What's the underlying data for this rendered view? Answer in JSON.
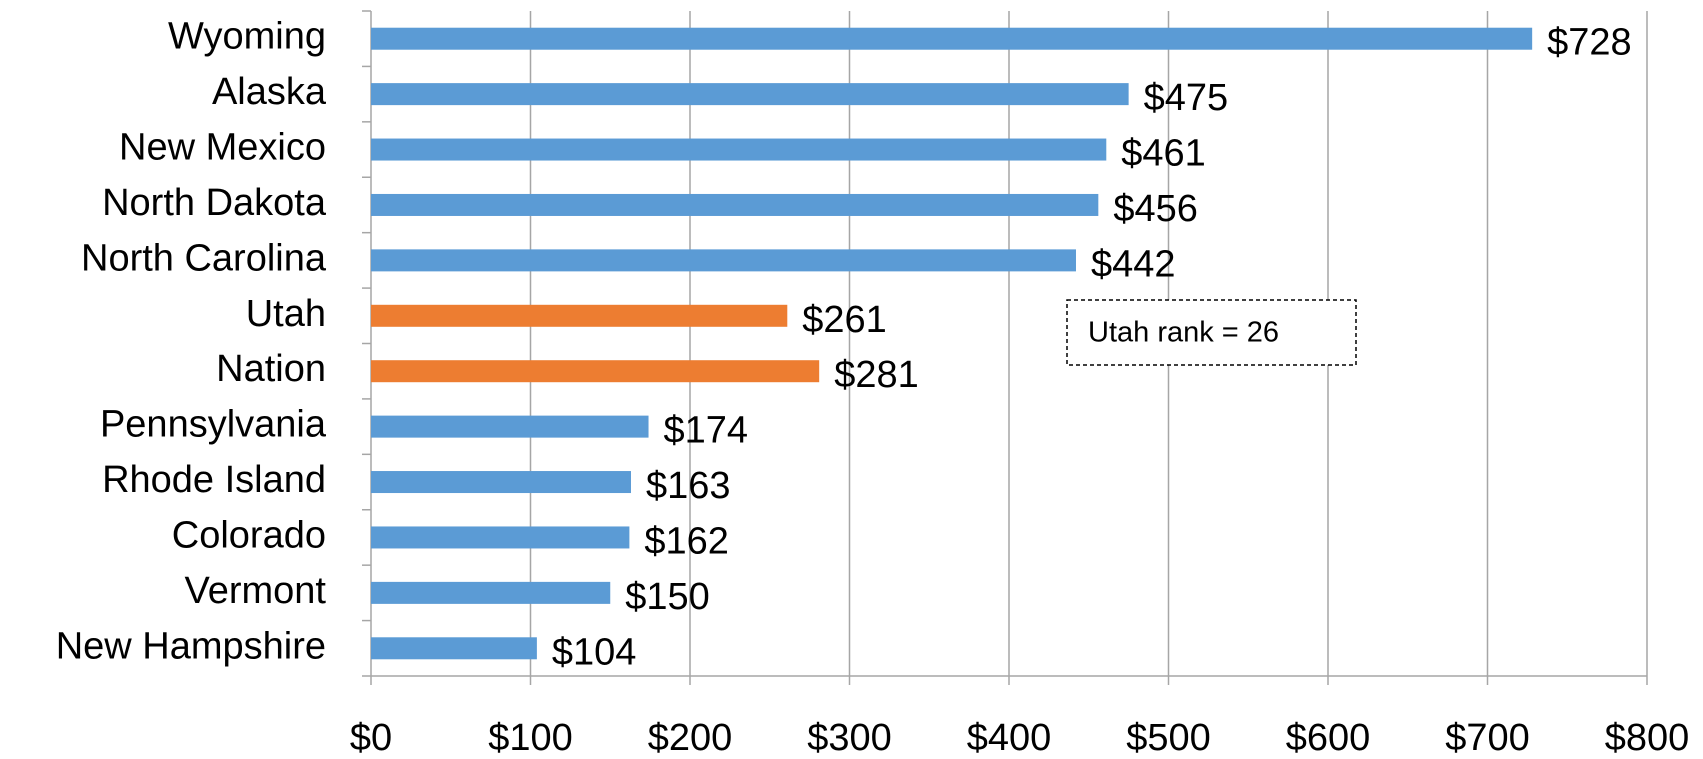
{
  "chart_data": {
    "type": "hbar",
    "categories": [
      "Wyoming",
      "Alaska",
      "New Mexico",
      "North Dakota",
      "North Carolina",
      "Utah",
      "Nation",
      "Pennsylvania",
      "Rhode Island",
      "Colorado",
      "Vermont",
      "New Hampshire"
    ],
    "values": [
      728,
      475,
      461,
      456,
      442,
      261,
      281,
      174,
      163,
      162,
      150,
      104
    ],
    "value_labels": [
      "$728",
      "$475",
      "$461",
      "$456",
      "$442",
      "$261",
      "$281",
      "$174",
      "$163",
      "$162",
      "$150",
      "$104"
    ],
    "colors": [
      "#5b9bd5",
      "#5b9bd5",
      "#5b9bd5",
      "#5b9bd5",
      "#5b9bd5",
      "#ed7d31",
      "#ed7d31",
      "#5b9bd5",
      "#5b9bd5",
      "#5b9bd5",
      "#5b9bd5",
      "#5b9bd5"
    ],
    "xlim": [
      0,
      800
    ],
    "xticks": [
      {
        "value": 0,
        "label": "$0"
      },
      {
        "value": 100,
        "label": "$100"
      },
      {
        "value": 200,
        "label": "$200"
      },
      {
        "value": 300,
        "label": "$300"
      },
      {
        "value": 400,
        "label": "$400"
      },
      {
        "value": 500,
        "label": "$500"
      },
      {
        "value": 600,
        "label": "$600"
      },
      {
        "value": 700,
        "label": "$700"
      },
      {
        "value": 800,
        "label": "$800"
      }
    ],
    "grid": true,
    "annotation": "Utah rank = 26"
  }
}
